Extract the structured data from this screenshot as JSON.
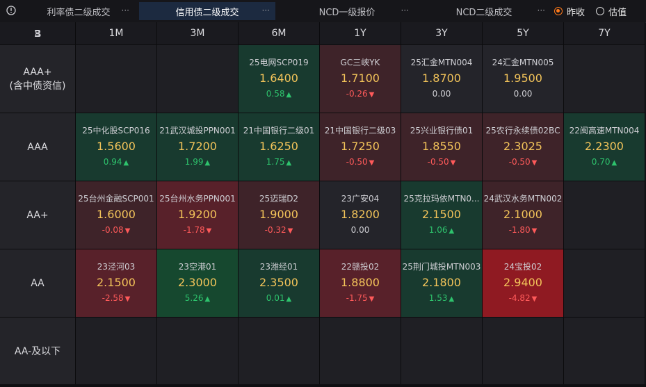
{
  "tabs": [
    {
      "label": "利率债二级成交",
      "more": "···"
    },
    {
      "label": "信用债二级成交",
      "more": "···"
    },
    {
      "label": "NCD一级报价",
      "more": "···"
    },
    {
      "label": "NCD二级成交",
      "more": "···"
    }
  ],
  "radios": [
    {
      "label": "昨收",
      "selected": true
    },
    {
      "label": "估值",
      "selected": false
    }
  ],
  "corner_icon": "brand-b-icon",
  "columns": [
    "1M",
    "3M",
    "6M",
    "1Y",
    "3Y",
    "5Y",
    "7Y"
  ],
  "rows": [
    {
      "label": "AAA+\n(含中债资信)",
      "cells": [
        null,
        null,
        {
          "name": "25电网SCP019",
          "rate": "1.6400",
          "change": "0.58",
          "dir": "up"
        },
        {
          "name": "GC三峡YK",
          "rate": "1.7100",
          "change": "-0.26",
          "dir": "down"
        },
        {
          "name": "25汇金MTN004",
          "rate": "1.8700",
          "change": "0.00",
          "dir": "flat"
        },
        {
          "name": "24汇金MTN005",
          "rate": "1.9500",
          "change": "0.00",
          "dir": "flat"
        },
        null
      ]
    },
    {
      "label": "AAA",
      "cells": [
        {
          "name": "25中化股SCP016",
          "rate": "1.5600",
          "change": "0.94",
          "dir": "up"
        },
        {
          "name": "21武汉城投PPN001",
          "rate": "1.7200",
          "change": "1.99",
          "dir": "up"
        },
        {
          "name": "21中国银行二级01",
          "rate": "1.6250",
          "change": "1.75",
          "dir": "up"
        },
        {
          "name": "21中国银行二级03",
          "rate": "1.7250",
          "change": "-0.50",
          "dir": "down"
        },
        {
          "name": "25兴业银行债01",
          "rate": "1.8550",
          "change": "-0.50",
          "dir": "down"
        },
        {
          "name": "25农行永续债02BC",
          "rate": "2.3025",
          "change": "-0.50",
          "dir": "down"
        },
        {
          "name": "22闽高速MTN004",
          "rate": "2.2300",
          "change": "0.70",
          "dir": "up"
        }
      ]
    },
    {
      "label": "AA+",
      "cells": [
        {
          "name": "25台州金融SCP001",
          "rate": "1.6000",
          "change": "-0.08",
          "dir": "down"
        },
        {
          "name": "25台州水务PPN001",
          "rate": "1.9200",
          "change": "-1.78",
          "dir": "down"
        },
        {
          "name": "25迈瑞D2",
          "rate": "1.9000",
          "change": "-0.32",
          "dir": "down"
        },
        {
          "name": "23广安04",
          "rate": "1.8200",
          "change": "0.00",
          "dir": "flat"
        },
        {
          "name": "25克拉玛依MTN0...",
          "rate": "2.1500",
          "change": "1.06",
          "dir": "up"
        },
        {
          "name": "24武汉水务MTN002",
          "rate": "2.1000",
          "change": "-1.80",
          "dir": "down"
        },
        null
      ]
    },
    {
      "label": "AA",
      "cells": [
        {
          "name": "23泾河03",
          "rate": "2.1500",
          "change": "-2.58",
          "dir": "down"
        },
        {
          "name": "23空港01",
          "rate": "2.3000",
          "change": "5.26",
          "dir": "up"
        },
        {
          "name": "23潍经01",
          "rate": "2.3500",
          "change": "0.01",
          "dir": "up"
        },
        {
          "name": "22赣投02",
          "rate": "1.8800",
          "change": "-1.75",
          "dir": "down"
        },
        {
          "name": "25荆门城投MTN003",
          "rate": "2.1800",
          "change": "1.53",
          "dir": "up"
        },
        {
          "name": "24宝投02",
          "rate": "2.9400",
          "change": "-4.82",
          "dir": "down"
        },
        null
      ]
    },
    {
      "label": "AA-及以下",
      "cells": [
        null,
        null,
        null,
        null,
        null,
        null,
        null
      ]
    }
  ],
  "colors": {
    "up": "#2ec36d",
    "down": "#ff5a5a",
    "rate": "#f3c45a",
    "active_tab": "#1c2a40",
    "radio_selected": "#ff7a1a"
  }
}
